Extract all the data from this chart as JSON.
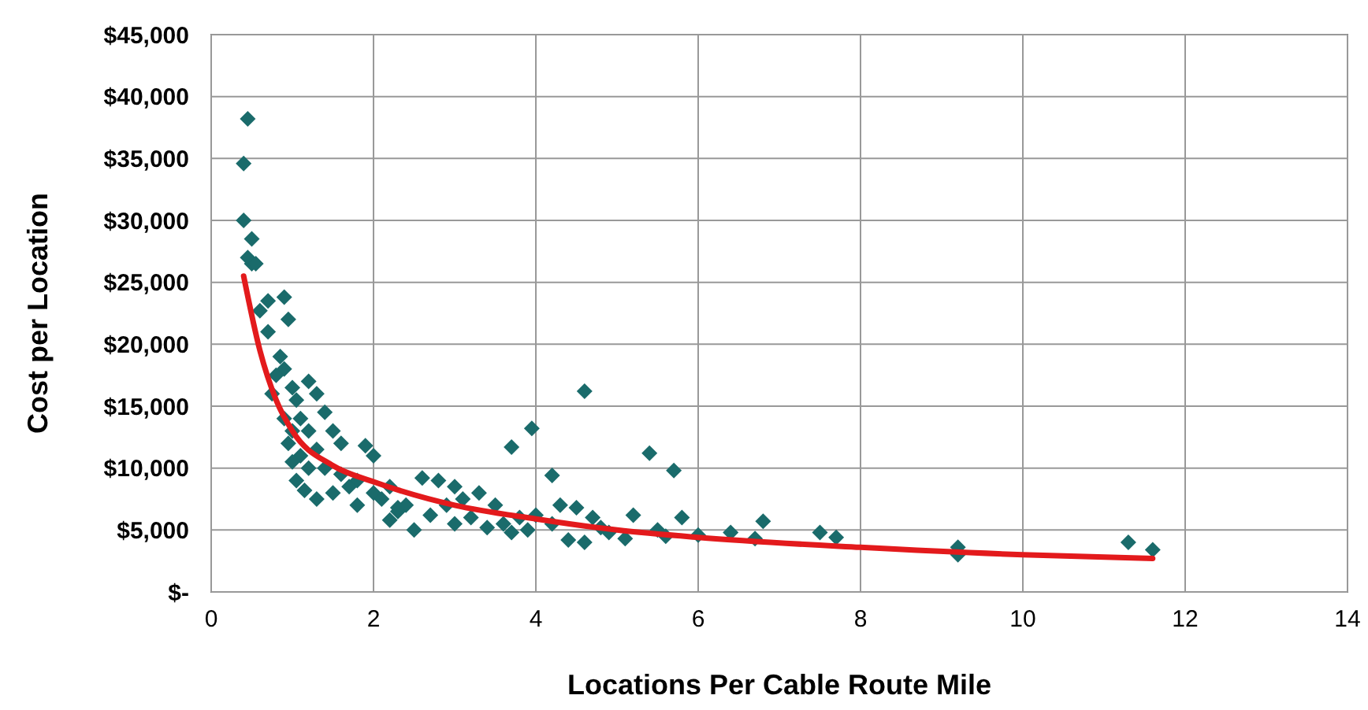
{
  "chart_data": {
    "type": "scatter",
    "xlabel": "Locations Per Cable Route Mile",
    "ylabel": "Cost per Location",
    "xlim": [
      0,
      14
    ],
    "ylim": [
      0,
      45000
    ],
    "xticks": [
      0,
      2,
      4,
      6,
      8,
      10,
      12,
      14
    ],
    "yticks": [
      {
        "value": 0,
        "label": "$-"
      },
      {
        "value": 5000,
        "label": "$5,000"
      },
      {
        "value": 10000,
        "label": "$10,000"
      },
      {
        "value": 15000,
        "label": "$15,000"
      },
      {
        "value": 20000,
        "label": "$20,000"
      },
      {
        "value": 25000,
        "label": "$25,000"
      },
      {
        "value": 30000,
        "label": "$30,000"
      },
      {
        "value": 35000,
        "label": "$35,000"
      },
      {
        "value": 40000,
        "label": "$40,000"
      },
      {
        "value": 45000,
        "label": "$45,000"
      }
    ],
    "grid": true,
    "marker": "diamond",
    "series": [
      {
        "type": "scatter",
        "color": "#1a6b6b",
        "x": [
          0.45,
          0.4,
          0.4,
          0.5,
          0.45,
          0.5,
          0.55,
          0.6,
          0.7,
          0.9,
          0.95,
          0.7,
          0.85,
          0.9,
          1.0,
          1.05,
          1.2,
          1.3,
          1.4,
          1.1,
          0.9,
          1.0,
          1.2,
          1.5,
          0.95,
          1.1,
          1.3,
          1.6,
          1.0,
          1.2,
          1.05,
          1.15,
          1.4,
          1.6,
          1.8,
          1.9,
          2.0,
          1.7,
          2.0,
          2.2,
          2.1,
          2.4,
          2.6,
          2.3,
          2.8,
          3.0,
          2.5,
          2.9,
          3.1,
          3.3,
          3.5,
          3.2,
          3.6,
          3.8,
          3.4,
          3.7,
          4.0,
          4.2,
          3.9,
          4.3,
          4.5,
          4.7,
          4.4,
          4.6,
          4.8,
          4.9,
          5.1,
          2.2,
          2.7,
          3.0,
          1.8,
          1.5,
          3.7,
          3.95,
          4.6,
          5.4,
          5.7,
          4.2,
          5.2,
          5.5,
          5.8,
          5.6,
          6.0,
          6.4,
          6.8,
          6.7,
          7.5,
          7.7,
          9.2,
          9.2,
          11.3,
          11.6,
          2.3,
          1.3,
          0.8,
          0.75
        ],
        "values": [
          38200,
          34600,
          30000,
          28500,
          27000,
          26500,
          26500,
          22700,
          23500,
          23800,
          22000,
          21000,
          19000,
          18000,
          16500,
          15500,
          17000,
          16000,
          14500,
          14000,
          14000,
          13000,
          13000,
          13000,
          12000,
          11000,
          11500,
          12000,
          10500,
          10000,
          9000,
          8200,
          10000,
          9500,
          9000,
          11800,
          11000,
          8500,
          8000,
          8500,
          7500,
          7000,
          9200,
          6500,
          9000,
          8500,
          5000,
          7000,
          7500,
          8000,
          7000,
          6000,
          5500,
          6000,
          5200,
          4800,
          6200,
          5500,
          5000,
          7000,
          6800,
          6000,
          4200,
          4000,
          5200,
          4800,
          4300,
          5800,
          6200,
          5500,
          7000,
          8000,
          11700,
          13200,
          16200,
          11200,
          9800,
          9400,
          6200,
          5000,
          6000,
          4500,
          4600,
          4800,
          5700,
          4300,
          4800,
          4400,
          3600,
          3000,
          4000,
          3400,
          6800,
          7500,
          17500,
          16000
        ]
      },
      {
        "type": "line",
        "color": "#e31a1c",
        "marker": "none",
        "x": [
          0.4,
          0.6,
          0.8,
          1,
          1.5,
          2,
          3,
          4,
          5,
          6,
          8,
          10,
          11.6
        ],
        "values": [
          25500,
          19500,
          15500,
          13000,
          10200,
          8900,
          7000,
          5900,
          5000,
          4400,
          3600,
          3000,
          2700
        ]
      }
    ]
  }
}
